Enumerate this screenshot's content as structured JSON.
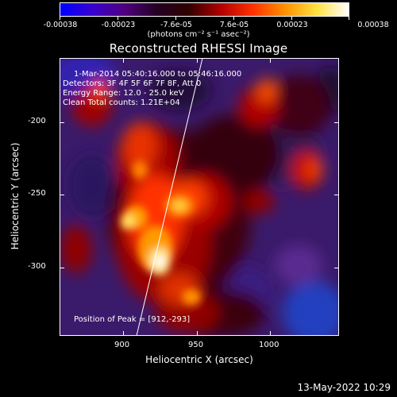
{
  "colorbar": {
    "tick_labels": [
      "-0.00038",
      "-0.00023",
      "-7.6e-05",
      "7.6e-05",
      "0.00023",
      "0.00038"
    ],
    "units": "(photons cm⁻² s⁻¹ asec⁻²)",
    "colormap": [
      "#0000ff",
      "#3a00d0",
      "#500080",
      "#240024",
      "#300000",
      "#b00000",
      "#ff3000",
      "#ff9000",
      "#ffe040",
      "#ffffff"
    ]
  },
  "title": "Reconstructed RHESSI Image",
  "info": {
    "time": "1-Mar-2014 05:40:16.000 to 05:46:16.000",
    "detectors": "Detectors: 3F 4F 5F 6F 7F 8F, Att 0",
    "energy": "Energy Range: 12.0 - 25.0 keV",
    "algorithm": "Clean     Total counts: 1.21E+04",
    "peak": "Position of Peak = [912,-293]"
  },
  "axes": {
    "xlabel": "Heliocentric X (arcsec)",
    "ylabel": "Heliocentric Y (arcsec)",
    "xticks": [
      "900",
      "950",
      "1000"
    ],
    "yticks": [
      "-200",
      "-250",
      "-300"
    ]
  },
  "footer": "13-May-2022 10:29"
}
